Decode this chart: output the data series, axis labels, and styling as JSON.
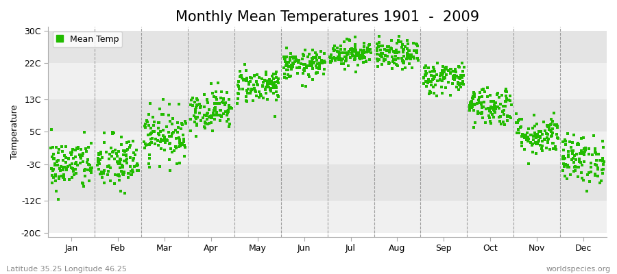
{
  "title": "Monthly Mean Temperatures 1901  -  2009",
  "ylabel": "Temperature",
  "yticks": [
    -20,
    -12,
    -3,
    5,
    13,
    22,
    30
  ],
  "ytick_labels": [
    "-20C",
    "-12C",
    "-3C",
    "5C",
    "13C",
    "22C",
    "30C"
  ],
  "ylim": [
    -21,
    31
  ],
  "months": [
    "Jan",
    "Feb",
    "Mar",
    "Apr",
    "May",
    "Jun",
    "Jul",
    "Aug",
    "Sep",
    "Oct",
    "Nov",
    "Dec"
  ],
  "monthly_means": [
    -3.2,
    -2.8,
    4.2,
    10.5,
    16.5,
    21.5,
    24.5,
    24.0,
    18.5,
    11.5,
    4.2,
    -1.8
  ],
  "monthly_stds": [
    3.2,
    3.5,
    3.2,
    2.5,
    2.2,
    1.8,
    1.6,
    1.8,
    2.0,
    2.5,
    2.5,
    3.0
  ],
  "n_years": 109,
  "dot_color": "#22bb00",
  "dot_size": 10,
  "legend_label": "Mean Temp",
  "footer_left": "Latitude 35.25 Longitude 46.25",
  "footer_right": "worldspecies.org",
  "bg_color": "#ffffff",
  "plot_bg": "#ffffff",
  "band_light": "#f0f0f0",
  "band_dark": "#e4e4e4",
  "vline_color": "#888888",
  "title_fontsize": 15,
  "axis_fontsize": 9,
  "footer_fontsize": 8,
  "legend_fontsize": 9
}
